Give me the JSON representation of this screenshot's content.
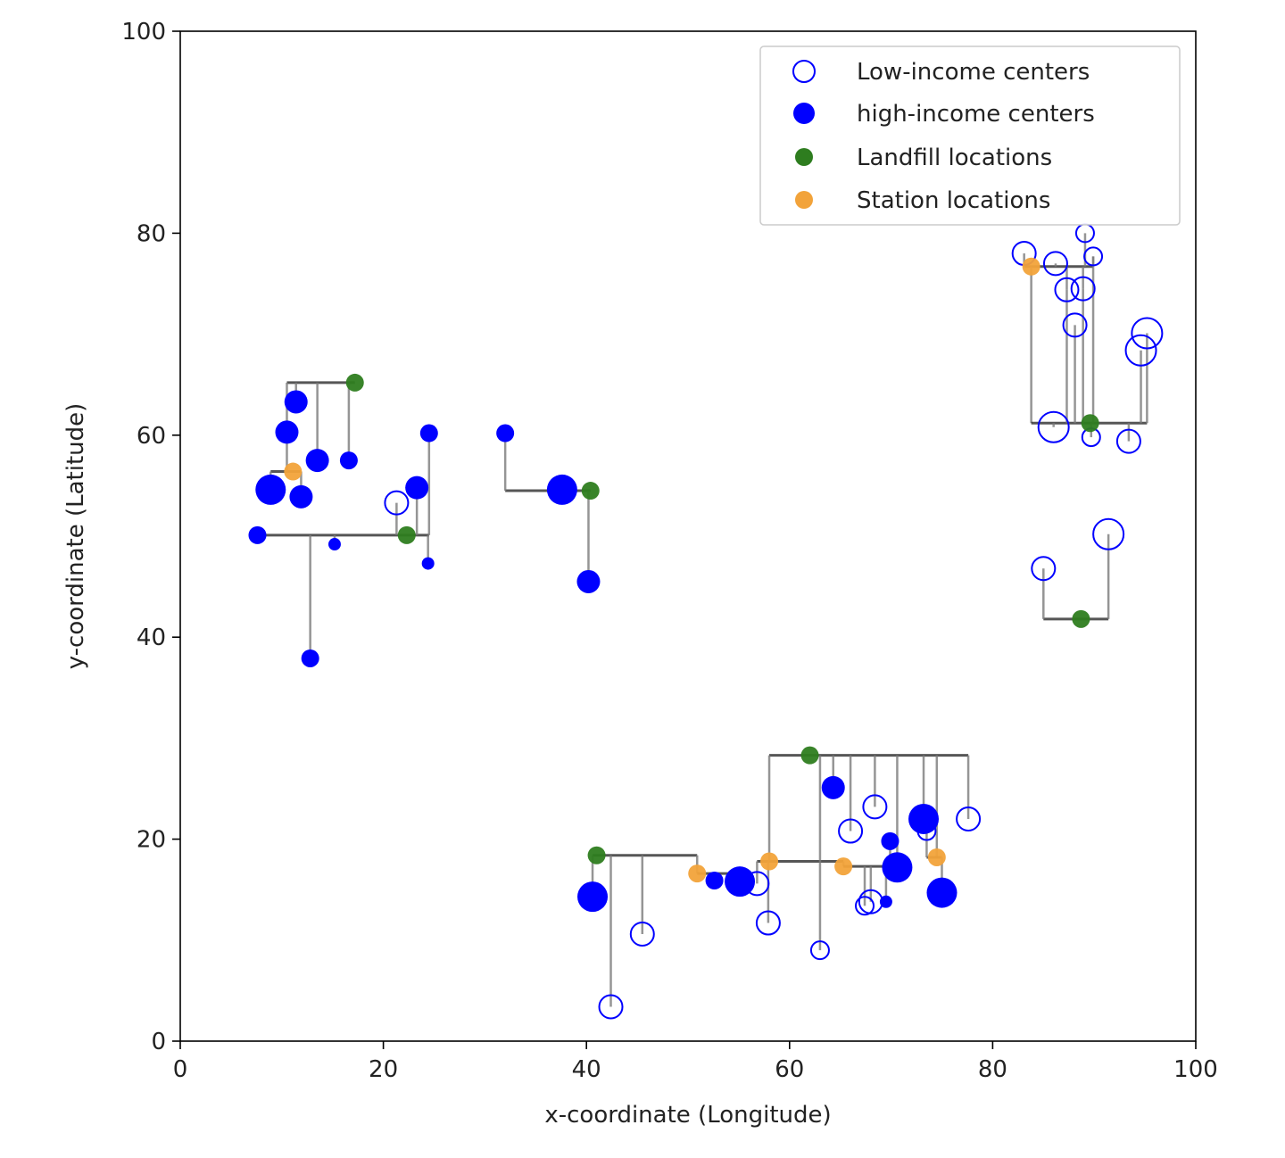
{
  "chart_data": {
    "type": "scatter",
    "title": "",
    "xlabel": "x-coordinate (Longitude)",
    "ylabel": "y-coordinate (Latitude)",
    "xlim": [
      0,
      100
    ],
    "ylim": [
      0,
      100
    ],
    "xticks": [
      "0",
      "20",
      "40",
      "60",
      "80",
      "100"
    ],
    "yticks": [
      "0",
      "20",
      "40",
      "60",
      "80",
      "100"
    ],
    "grid": false,
    "legend_position": "top-right",
    "colors": {
      "centers": "#0000ff",
      "landfill": "#2e7d1f",
      "station": "#f2a33a",
      "connector": "#7a7a7a",
      "trunk": "#1e1e1e"
    },
    "series": [
      {
        "name": "Low-income centers",
        "marker": "hollow-circle",
        "points": [
          {
            "x": 21.3,
            "y": 53.3,
            "s": 2
          },
          {
            "x": 42.4,
            "y": 3.4,
            "s": 2
          },
          {
            "x": 45.5,
            "y": 10.6,
            "s": 2
          },
          {
            "x": 56.8,
            "y": 15.6,
            "s": 2
          },
          {
            "x": 57.9,
            "y": 11.7,
            "s": 2
          },
          {
            "x": 63.0,
            "y": 9.0,
            "s": 1
          },
          {
            "x": 66.0,
            "y": 20.8,
            "s": 2
          },
          {
            "x": 67.4,
            "y": 13.4,
            "s": 1
          },
          {
            "x": 68.0,
            "y": 13.8,
            "s": 2
          },
          {
            "x": 68.4,
            "y": 23.2,
            "s": 2
          },
          {
            "x": 73.5,
            "y": 20.8,
            "s": 1
          },
          {
            "x": 77.6,
            "y": 22.0,
            "s": 2
          },
          {
            "x": 83.1,
            "y": 78.0,
            "s": 2
          },
          {
            "x": 86.2,
            "y": 77.0,
            "s": 2
          },
          {
            "x": 87.3,
            "y": 74.4,
            "s": 2
          },
          {
            "x": 88.1,
            "y": 70.9,
            "s": 2
          },
          {
            "x": 88.9,
            "y": 74.5,
            "s": 2
          },
          {
            "x": 89.1,
            "y": 80.0,
            "s": 1
          },
          {
            "x": 89.9,
            "y": 77.7,
            "s": 1
          },
          {
            "x": 95.2,
            "y": 70.1,
            "s": 3
          },
          {
            "x": 94.6,
            "y": 68.4,
            "s": 3
          },
          {
            "x": 86.0,
            "y": 60.8,
            "s": 3
          },
          {
            "x": 89.7,
            "y": 59.8,
            "s": 1
          },
          {
            "x": 93.4,
            "y": 59.4,
            "s": 2
          },
          {
            "x": 85.0,
            "y": 46.8,
            "s": 2
          },
          {
            "x": 91.4,
            "y": 50.2,
            "s": 3
          }
        ]
      },
      {
        "name": "high-income centers",
        "marker": "filled-circle",
        "points": [
          {
            "x": 11.4,
            "y": 63.3,
            "s": 2
          },
          {
            "x": 10.5,
            "y": 60.3,
            "s": 2
          },
          {
            "x": 13.5,
            "y": 57.5,
            "s": 2
          },
          {
            "x": 16.6,
            "y": 57.5,
            "s": 1
          },
          {
            "x": 8.9,
            "y": 54.6,
            "s": 3
          },
          {
            "x": 11.9,
            "y": 53.9,
            "s": 2
          },
          {
            "x": 7.6,
            "y": 50.1,
            "s": 1
          },
          {
            "x": 15.2,
            "y": 49.2,
            "s": 0
          },
          {
            "x": 12.8,
            "y": 37.9,
            "s": 1
          },
          {
            "x": 23.3,
            "y": 54.8,
            "s": 2
          },
          {
            "x": 24.5,
            "y": 60.2,
            "s": 1
          },
          {
            "x": 24.4,
            "y": 47.3,
            "s": 0
          },
          {
            "x": 32.0,
            "y": 60.2,
            "s": 1
          },
          {
            "x": 37.6,
            "y": 54.6,
            "s": 3
          },
          {
            "x": 40.2,
            "y": 45.5,
            "s": 2
          },
          {
            "x": 40.6,
            "y": 14.3,
            "s": 3
          },
          {
            "x": 52.6,
            "y": 15.9,
            "s": 1
          },
          {
            "x": 55.1,
            "y": 15.8,
            "s": 3
          },
          {
            "x": 64.3,
            "y": 25.1,
            "s": 2
          },
          {
            "x": 69.9,
            "y": 19.8,
            "s": 1
          },
          {
            "x": 70.6,
            "y": 17.2,
            "s": 3
          },
          {
            "x": 69.5,
            "y": 13.8,
            "s": 0
          },
          {
            "x": 73.2,
            "y": 22.0,
            "s": 3
          },
          {
            "x": 75.0,
            "y": 14.7,
            "s": 3
          }
        ]
      },
      {
        "name": "Landfill locations",
        "marker": "dot",
        "points": [
          {
            "x": 17.2,
            "y": 65.2
          },
          {
            "x": 22.3,
            "y": 50.1
          },
          {
            "x": 40.4,
            "y": 54.5
          },
          {
            "x": 41.0,
            "y": 18.4
          },
          {
            "x": 62.0,
            "y": 28.3
          },
          {
            "x": 89.6,
            "y": 61.2
          },
          {
            "x": 88.7,
            "y": 41.8
          }
        ]
      },
      {
        "name": "Station locations",
        "marker": "dot",
        "points": [
          {
            "x": 11.1,
            "y": 56.4
          },
          {
            "x": 50.9,
            "y": 16.6
          },
          {
            "x": 58.0,
            "y": 17.8
          },
          {
            "x": 65.3,
            "y": 17.3
          },
          {
            "x": 74.5,
            "y": 18.2
          },
          {
            "x": 83.8,
            "y": 76.7
          }
        ]
      }
    ],
    "connections": [
      {
        "hub": [
          17.2,
          65.2
        ],
        "members": [
          [
            11.4,
            63.3
          ],
          [
            10.5,
            60.3
          ],
          [
            13.5,
            57.5
          ],
          [
            16.6,
            57.5
          ]
        ]
      },
      {
        "hub": [
          11.1,
          56.4
        ],
        "members": [
          [
            8.9,
            54.6
          ],
          [
            11.9,
            53.9
          ],
          [
            10.5,
            60.3
          ]
        ]
      },
      {
        "hub": [
          22.3,
          50.1
        ],
        "members": [
          [
            7.6,
            50.1
          ],
          [
            15.2,
            49.2
          ],
          [
            12.8,
            37.9
          ],
          [
            23.3,
            54.8
          ],
          [
            24.5,
            60.2
          ],
          [
            24.4,
            47.3
          ],
          [
            21.3,
            53.3
          ]
        ]
      },
      {
        "hub": [
          40.4,
          54.5
        ],
        "members": [
          [
            32.0,
            60.2
          ],
          [
            37.6,
            54.6
          ],
          [
            40.2,
            45.5
          ]
        ]
      },
      {
        "hub": [
          41.0,
          18.4
        ],
        "members": [
          [
            40.6,
            14.3
          ],
          [
            42.4,
            3.4
          ],
          [
            45.5,
            10.6
          ],
          [
            50.9,
            16.6
          ]
        ]
      },
      {
        "hub": [
          50.9,
          16.6
        ],
        "members": [
          [
            52.6,
            15.9
          ],
          [
            55.1,
            15.8
          ]
        ]
      },
      {
        "hub": [
          58.0,
          17.8
        ],
        "members": [
          [
            56.8,
            15.6
          ],
          [
            57.9,
            11.7
          ],
          [
            65.3,
            17.3
          ]
        ]
      },
      {
        "hub": [
          62.0,
          28.3
        ],
        "members": [
          [
            58.0,
            17.8
          ],
          [
            63.0,
            9.0
          ],
          [
            64.3,
            25.1
          ],
          [
            66.0,
            20.8
          ],
          [
            68.4,
            23.2
          ],
          [
            70.6,
            17.2
          ],
          [
            73.2,
            22.0
          ],
          [
            77.6,
            22.0
          ],
          [
            74.5,
            18.2
          ]
        ]
      },
      {
        "hub": [
          65.3,
          17.3
        ],
        "members": [
          [
            67.4,
            13.4
          ],
          [
            68.0,
            13.8
          ],
          [
            69.5,
            13.8
          ],
          [
            69.9,
            19.8
          ],
          [
            70.6,
            17.2
          ]
        ]
      },
      {
        "hub": [
          74.5,
          18.2
        ],
        "members": [
          [
            73.5,
            20.8
          ],
          [
            75.0,
            14.7
          ]
        ]
      },
      {
        "hub": [
          83.8,
          76.7
        ],
        "members": [
          [
            86.2,
            77.0
          ],
          [
            87.3,
            74.4
          ],
          [
            88.9,
            74.5
          ],
          [
            89.1,
            80.0
          ],
          [
            89.9,
            77.7
          ],
          [
            83.1,
            78.0
          ],
          [
            83.8,
            61.2
          ]
        ]
      },
      {
        "hub": [
          89.6,
          61.2
        ],
        "members": [
          [
            86.0,
            60.8
          ],
          [
            89.7,
            59.8
          ],
          [
            93.4,
            59.4
          ],
          [
            88.1,
            70.9
          ],
          [
            87.3,
            74.4
          ],
          [
            88.9,
            74.5
          ],
          [
            89.9,
            77.7
          ],
          [
            94.6,
            68.4
          ],
          [
            95.2,
            70.1
          ],
          [
            83.8,
            61.2
          ]
        ]
      },
      {
        "hub": [
          88.7,
          41.8
        ],
        "members": [
          [
            85.0,
            46.8
          ],
          [
            91.4,
            50.2
          ]
        ]
      }
    ]
  }
}
